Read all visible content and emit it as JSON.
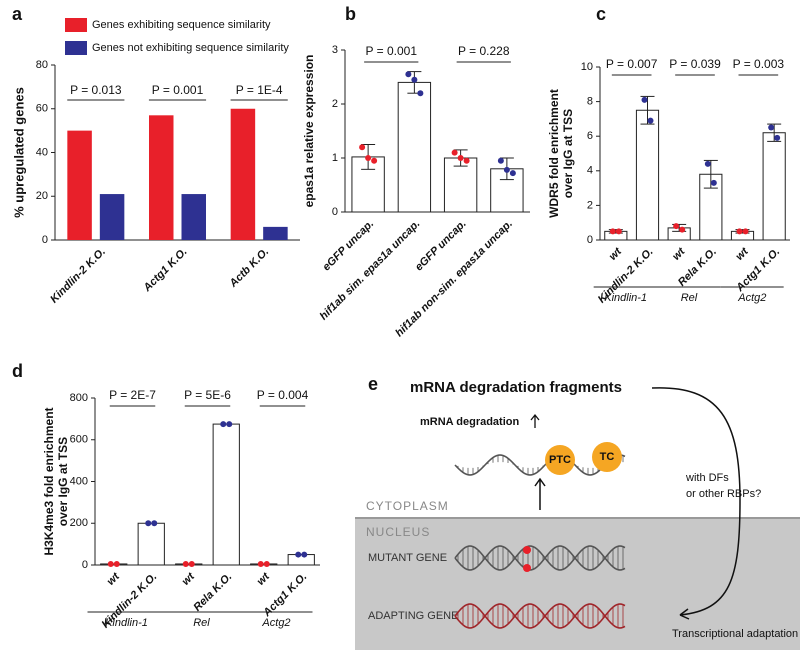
{
  "chart_data": [
    {
      "type": "bar",
      "panel": "a",
      "ylabel": "% upregulated genes",
      "categories": [
        "Kindlin-2 K.O.",
        "Actg1 K.O.",
        "Actb K.O."
      ],
      "series": [
        {
          "name": "Genes exhibiting sequence similarity",
          "color": "#e8202a",
          "values": [
            50,
            57,
            60
          ]
        },
        {
          "name": "Genes not exhibiting sequence similarity",
          "color": "#2e3192",
          "values": [
            21,
            21,
            6
          ]
        }
      ],
      "ylim": [
        0,
        80
      ],
      "yticks": [
        0,
        20,
        40,
        60,
        80
      ],
      "annotations": [
        "P = 0.013",
        "P = 0.001",
        "P = 1E-4"
      ]
    },
    {
      "type": "dotbar",
      "panel": "b",
      "ylabel": [
        "epas1a relative expression"
      ],
      "categories": [
        "eGFP uncap.",
        "hif1ab sim. epas1a uncap.",
        "eGFP uncap.",
        "hif1ab non-sim. epas1a uncap."
      ],
      "values": [
        1.02,
        2.4,
        1.0,
        0.8
      ],
      "errors": [
        0.23,
        0.2,
        0.15,
        0.2
      ],
      "points": [
        [
          1.2,
          1.0,
          0.95
        ],
        [
          2.55,
          2.45,
          2.2
        ],
        [
          1.1,
          1.0,
          0.95
        ],
        [
          0.95,
          0.78,
          0.72
        ]
      ],
      "colors": [
        "#e8202a",
        "#2e3192",
        "#e8202a",
        "#2e3192"
      ],
      "ylim": [
        0,
        3
      ],
      "yticks": [
        0,
        1,
        2,
        3
      ],
      "annotations": [
        "P = 0.001",
        "P = 0.228"
      ]
    },
    {
      "type": "dotbar",
      "panel": "c",
      "ylabel": [
        "WDR5 fold enrichment",
        "over IgG at TSS"
      ],
      "categories": [
        "wt",
        "Kindlin-2 K.O.",
        "wt",
        "Rela K.O.",
        "wt",
        "Actg1 K.O."
      ],
      "values": [
        0.5,
        7.5,
        0.7,
        3.8,
        0.5,
        6.2
      ],
      "errors": [
        0.1,
        0.8,
        0.2,
        0.8,
        0.1,
        0.5
      ],
      "points": [
        [
          0.5,
          0.5
        ],
        [
          8.1,
          6.9
        ],
        [
          0.8,
          0.6
        ],
        [
          4.4,
          3.3
        ],
        [
          0.5,
          0.5
        ],
        [
          6.5,
          5.9
        ]
      ],
      "colors": [
        "#e8202a",
        "#2e3192",
        "#e8202a",
        "#2e3192",
        "#e8202a",
        "#2e3192"
      ],
      "ylim": [
        0,
        10
      ],
      "yticks": [
        0,
        2,
        4,
        6,
        8,
        10
      ],
      "groups": [
        "Kindlin-1",
        "Rel",
        "Actg2"
      ],
      "annotations": [
        "P = 0.007",
        "P = 0.039",
        "P = 0.003"
      ]
    },
    {
      "type": "dotbar",
      "panel": "d",
      "ylabel": [
        "H3K4me3 fold enrichment",
        "over IgG at TSS"
      ],
      "categories": [
        "wt",
        "Kindlin-2 K.O.",
        "wt",
        "Rela K.O.",
        "wt",
        "Actg1 K.O."
      ],
      "values": [
        5,
        200,
        5,
        675,
        5,
        50
      ],
      "errors": [
        0,
        0,
        0,
        0,
        0,
        0
      ],
      "points": [
        [
          5,
          5
        ],
        [
          200,
          200
        ],
        [
          5,
          5
        ],
        [
          675,
          675
        ],
        [
          5,
          5
        ],
        [
          50,
          50
        ]
      ],
      "colors": [
        "#e8202a",
        "#2e3192",
        "#e8202a",
        "#2e3192",
        "#e8202a",
        "#2e3192"
      ],
      "ylim": [
        0,
        800
      ],
      "yticks": [
        0,
        200,
        400,
        600,
        800
      ],
      "groups": [
        "Kindlin-1",
        "Rel",
        "Actg2"
      ],
      "annotations": [
        "P = 2E-7",
        "P = 5E-6",
        "P = 0.004"
      ]
    }
  ],
  "diagram": {
    "panel": "e",
    "title": "mRNA degradation fragments",
    "degradation": "mRNA degradation",
    "ptc": "PTC",
    "tc": "TC",
    "side": [
      "with DFs",
      "or other RBPs?"
    ],
    "cytoplasm": "CYTOPLASM",
    "nucleus": "NUCLEUS",
    "mutant": "MUTANT GENE",
    "adapting": "ADAPTING GENE",
    "adaptation": "Transcriptional adaptation"
  }
}
